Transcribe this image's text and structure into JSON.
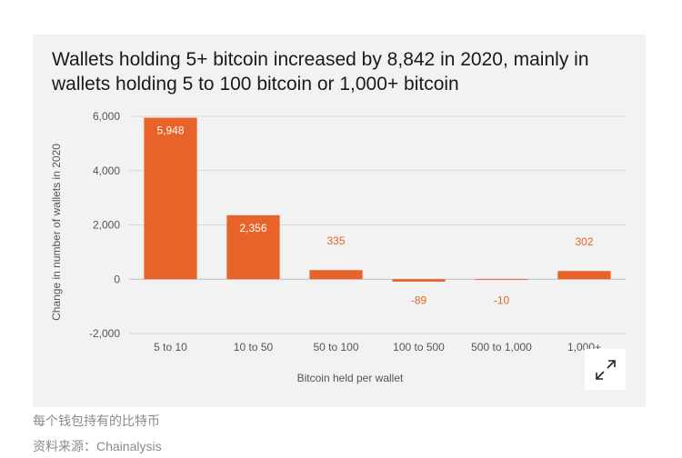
{
  "chart_data": {
    "type": "bar",
    "title": "Wallets holding 5+ bitcoin increased by 8,842 in 2020, mainly in wallets holding 5 to 100 bitcoin or 1,000+ bitcoin",
    "xlabel": "Bitcoin held per wallet",
    "ylabel": "Change in number of wallets in 2020",
    "categories": [
      "5 to 10",
      "10 to 50",
      "50 to 100",
      "100 to 500",
      "500 to 1,000",
      "1,000+"
    ],
    "values": [
      5948,
      2356,
      335,
      -89,
      -10,
      302
    ],
    "data_labels": [
      "5,948",
      "2,356",
      "335",
      "-89",
      "-10",
      "302"
    ],
    "ylim": [
      -2000,
      6000
    ],
    "yticks": [
      6000,
      4000,
      2000,
      0,
      -2000
    ],
    "ytick_labels": [
      "6,000",
      "4,000",
      "2,000",
      "0",
      "-2,000"
    ],
    "grid": true,
    "bar_color": "#e8632a",
    "outside_label_color": "#e8632a",
    "inside_label_color": "#ffffff"
  },
  "captions": {
    "line1": "每个钱包持有的比特币",
    "line2": "资料来源：Chainalysis"
  },
  "expand_button": {
    "icon": "expand-arrows-icon"
  }
}
